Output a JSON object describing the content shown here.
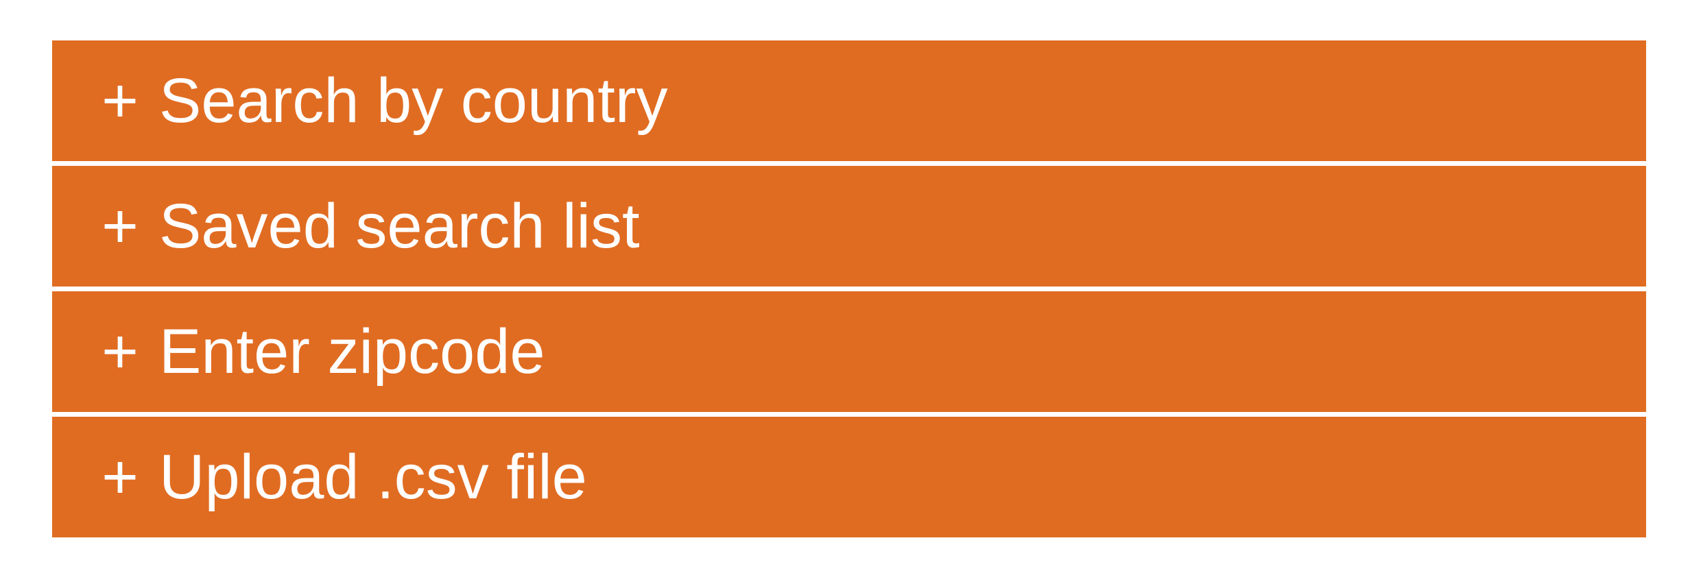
{
  "theme": {
    "accent_color": "#E06C22",
    "text_color": "#FFFFFF",
    "background_color": "#FFFFFF"
  },
  "accordion": {
    "expand_symbol": "+",
    "items": [
      {
        "label": "Search by country",
        "icon": "plus-icon"
      },
      {
        "label": "Saved search list",
        "icon": "plus-icon"
      },
      {
        "label": "Enter zipcode",
        "icon": "plus-icon"
      },
      {
        "label": "Upload .csv file",
        "icon": "plus-icon"
      }
    ]
  }
}
